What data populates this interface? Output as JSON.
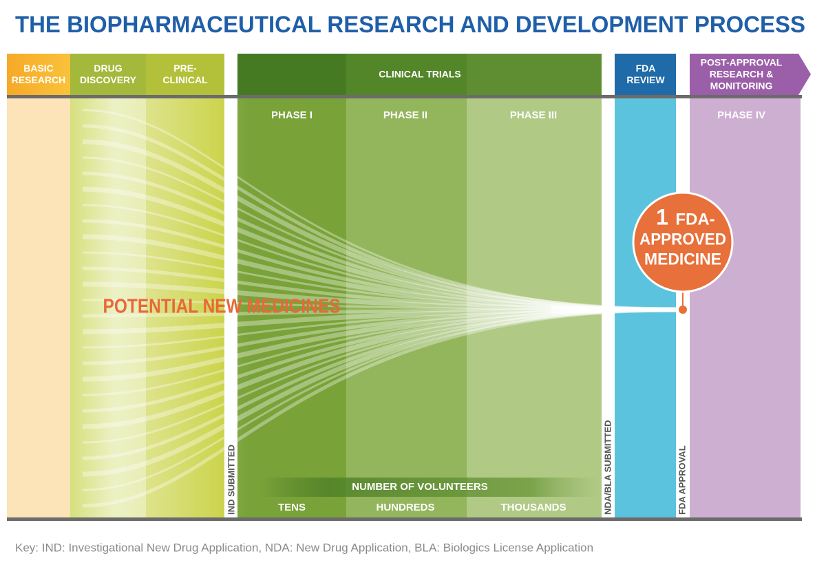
{
  "title": "THE BIOPHARMACEUTICAL RESEARCH AND DEVELOPMENT PROCESS",
  "stages": [
    {
      "lines": [
        "BASIC",
        "RESEARCH"
      ]
    },
    {
      "lines": [
        "DRUG",
        "DISCOVERY"
      ]
    },
    {
      "lines": [
        "PRE-",
        "CLINICAL"
      ]
    },
    {
      "lines": [
        "CLINICAL TRIALS"
      ]
    },
    {
      "lines": [
        "FDA",
        "REVIEW"
      ]
    },
    {
      "lines": [
        "POST-APPROVAL",
        "RESEARCH &",
        "MONITORING"
      ]
    }
  ],
  "phases": [
    "PHASE I",
    "PHASE II",
    "PHASE III",
    "PHASE IV"
  ],
  "milestones": [
    "IND SUBMITTED",
    "NDA/BLA SUBMITTED",
    "FDA APPROVAL"
  ],
  "funnel_label": "POTENTIAL NEW MEDICINES",
  "approved": {
    "number": "1",
    "lines": [
      "FDA-",
      "APPROVED",
      "MEDICINE"
    ]
  },
  "volunteers": {
    "label": "NUMBER OF VOLUNTEERS",
    "levels": [
      "TENS",
      "HUNDREDS",
      "THOUSANDS"
    ]
  },
  "key": "Key: IND: Investigational New Drug Application, NDA: New Drug Application, BLA: Biologics License Application"
}
